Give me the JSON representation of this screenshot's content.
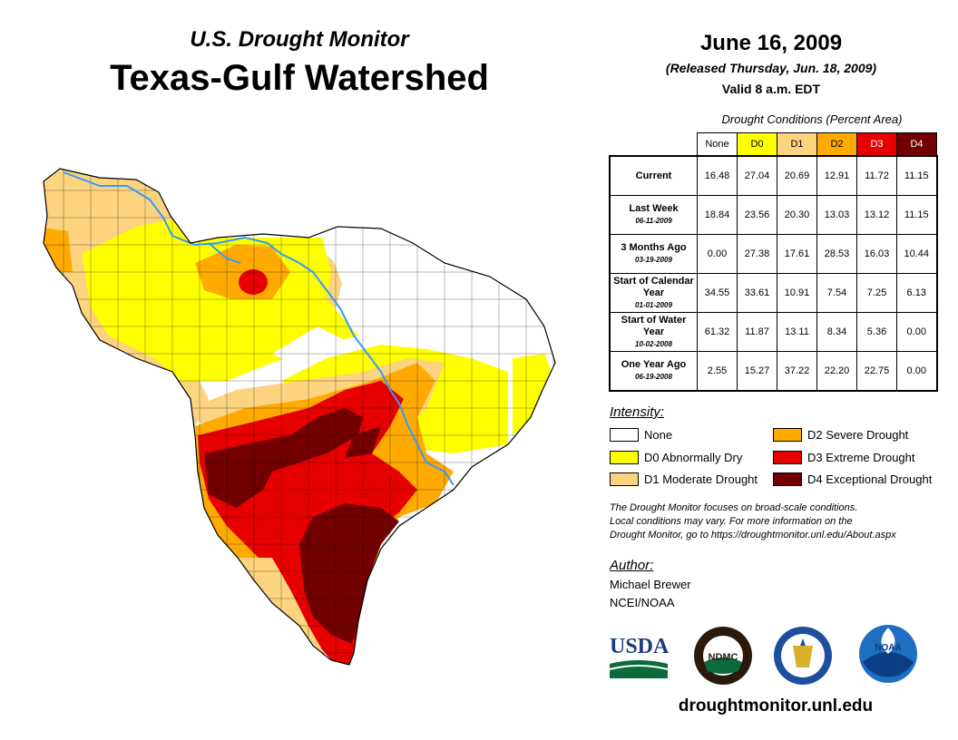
{
  "header": {
    "subtitle": "U.S. Drought Monitor",
    "title": "Texas-Gulf Watershed",
    "date": "June 16, 2009",
    "released": "(Released Thursday, Jun. 18, 2009)",
    "valid": "Valid 8 a.m. EDT"
  },
  "table": {
    "caption": "Drought Conditions (Percent Area)",
    "columns": [
      "None",
      "D0",
      "D1",
      "D2",
      "D3",
      "D4"
    ],
    "column_colors": [
      "#ffffff",
      "#ffff00",
      "#fcd37f",
      "#ffaa00",
      "#e60000",
      "#730000"
    ],
    "rows": [
      {
        "label": "Current",
        "sublabel": "",
        "values": [
          "16.48",
          "27.04",
          "20.69",
          "12.91",
          "11.72",
          "11.15"
        ]
      },
      {
        "label": "Last Week",
        "sublabel": "06-11-2009",
        "values": [
          "18.84",
          "23.56",
          "20.30",
          "13.03",
          "13.12",
          "11.15"
        ]
      },
      {
        "label": "3 Months Ago",
        "sublabel": "03-19-2009",
        "values": [
          "0.00",
          "27.38",
          "17.61",
          "28.53",
          "16.03",
          "10.44"
        ]
      },
      {
        "label": "Start of Calendar Year",
        "sublabel": "01-01-2009",
        "values": [
          "34.55",
          "33.61",
          "10.91",
          "7.54",
          "7.25",
          "6.13"
        ]
      },
      {
        "label": "Start of Water Year",
        "sublabel": "10-02-2008",
        "values": [
          "61.32",
          "11.87",
          "13.11",
          "8.34",
          "5.36",
          "0.00"
        ]
      },
      {
        "label": "One Year Ago",
        "sublabel": "06-19-2008",
        "values": [
          "2.55",
          "15.27",
          "37.22",
          "22.20",
          "22.75",
          "0.00"
        ]
      }
    ]
  },
  "legend": {
    "title": "Intensity:",
    "items": [
      {
        "label": "None",
        "color": "#ffffff"
      },
      {
        "label": "D0 Abnormally Dry",
        "color": "#ffff00"
      },
      {
        "label": "D1 Moderate Drought",
        "color": "#fcd37f"
      },
      {
        "label": "D2 Severe Drought",
        "color": "#ffaa00"
      },
      {
        "label": "D3 Extreme Drought",
        "color": "#e60000"
      },
      {
        "label": "D4 Exceptional Drought",
        "color": "#730000"
      }
    ]
  },
  "note": {
    "line1": "The Drought Monitor focuses on broad-scale conditions.",
    "line2": "Local conditions may vary. For more information on the",
    "line3": "Drought Monitor, go to https://droughtmonitor.unl.edu/About.aspx"
  },
  "author": {
    "title": "Author:",
    "name": "Michael Brewer",
    "org": "NCEI/NOAA"
  },
  "logos": {
    "usda": "USDA",
    "ndmc": "NDMC",
    "noaa": "NOAA"
  },
  "website": "droughtmonitor.unl.edu",
  "colors": {
    "river": "#3399ff",
    "county_line": "#000000"
  }
}
